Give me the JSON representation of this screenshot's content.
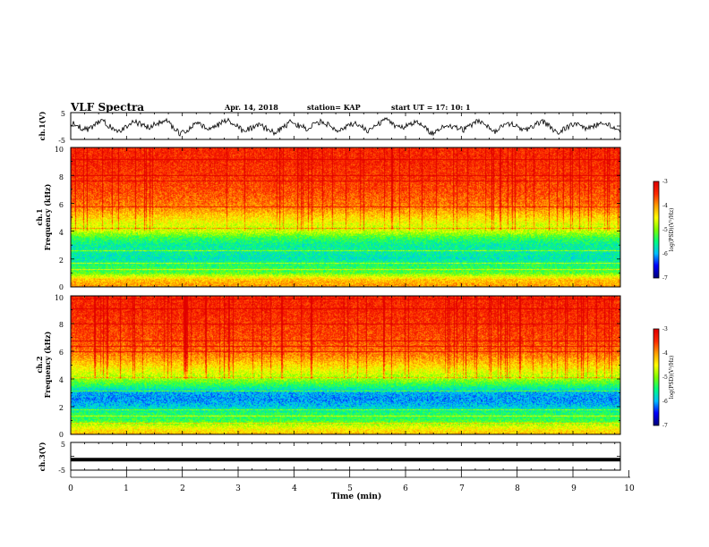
{
  "header": {
    "title": "VLF Spectra",
    "date": "Apr. 14, 2018",
    "station": "station= KAP",
    "start_ut": "start  UT  =   17: 10: 1"
  },
  "colors": {
    "spectrum": [
      "#00007f",
      "#0000ff",
      "#00bfff",
      "#00ff7f",
      "#7fff00",
      "#ffff00",
      "#ff9f00",
      "#ff2a00",
      "#e00000"
    ],
    "trace": "#000000"
  },
  "chart_data": [
    {
      "type": "line",
      "panel": "ch1",
      "ylabel": "ch.1(V)",
      "ylim": [
        -5,
        5
      ],
      "yticks": [
        "5",
        "-5"
      ],
      "xlim": [
        0,
        10
      ],
      "series": [
        {
          "values": [
            1.2,
            -1.5,
            2.0,
            -2.5,
            1.8,
            -0.5,
            2.2,
            -3.0,
            1.0,
            -1.2,
            2.6,
            -2.0,
            0.5,
            -2.8,
            1.5,
            -1.0,
            2.0,
            -2.2,
            1.0,
            -1.8,
            2.4,
            -0.8,
            1.6,
            -2.6,
            0.6,
            -1.4,
            2.2,
            -2.0,
            1.2,
            -1.6,
            2.0,
            -2.4,
            0.8,
            -1.0,
            1.8,
            -2.2
          ]
        }
      ]
    },
    {
      "type": "heatmap",
      "panel": "ch1_spectrogram",
      "ylabel": "ch.1",
      "ylabel2": "Frequency  (kHz)",
      "ylim": [
        0,
        10
      ],
      "yticks": [
        "0",
        "2",
        "4",
        "6",
        "8",
        "10"
      ],
      "xlim": [
        0,
        10
      ],
      "colorbar": {
        "label": "log(PSD)(V²/Hz)",
        "range": [
          -7,
          -3
        ],
        "ticks": [
          "-3",
          "-4",
          "-5",
          "-6",
          "-7"
        ]
      },
      "profile_freq_khz": [
        0,
        0.5,
        1,
        1.5,
        2,
        2.5,
        3,
        3.5,
        4,
        4.5,
        5,
        5.5,
        6,
        7,
        8,
        9,
        10
      ],
      "profile_log_psd": [
        -4.0,
        -4.2,
        -5.2,
        -5.4,
        -5.7,
        -5.6,
        -5.6,
        -5.3,
        -4.7,
        -4.6,
        -4.3,
        -4.0,
        -3.8,
        -3.6,
        -3.5,
        -3.4,
        -3.4
      ]
    },
    {
      "type": "heatmap",
      "panel": "ch2_spectrogram",
      "ylabel": "ch.2",
      "ylabel2": "Frequency  (kHz)",
      "ylim": [
        0,
        10
      ],
      "yticks": [
        "0",
        "2",
        "4",
        "6",
        "8",
        "10"
      ],
      "xlim": [
        0,
        10
      ],
      "colorbar": {
        "label": "log(PSD)(V²/Hz)",
        "range": [
          -7,
          -3
        ],
        "ticks": [
          "-3",
          "-4",
          "-5",
          "-6",
          "-7"
        ]
      },
      "profile_freq_khz": [
        0,
        0.5,
        1,
        1.5,
        2,
        2.5,
        3,
        3.5,
        4,
        4.5,
        5,
        5.5,
        6,
        7,
        8,
        9,
        10
      ],
      "profile_log_psd": [
        -4.2,
        -4.6,
        -5.3,
        -5.4,
        -5.9,
        -6.1,
        -6.0,
        -5.4,
        -4.9,
        -4.6,
        -4.3,
        -4.0,
        -3.8,
        -3.6,
        -3.5,
        -3.4,
        -3.4
      ]
    },
    {
      "type": "line",
      "panel": "ch3",
      "ylabel": "ch.3(V)",
      "ylim": [
        -5,
        5
      ],
      "yticks": [
        "5",
        "-5"
      ],
      "xlim": [
        0,
        10
      ],
      "xlabel": "Time  (min)",
      "xticks": [
        "0",
        "1",
        "2",
        "3",
        "4",
        "5",
        "6",
        "7",
        "8",
        "9",
        "10"
      ],
      "series": [
        {
          "values": [
            -1.2,
            -1.2
          ]
        }
      ]
    }
  ]
}
